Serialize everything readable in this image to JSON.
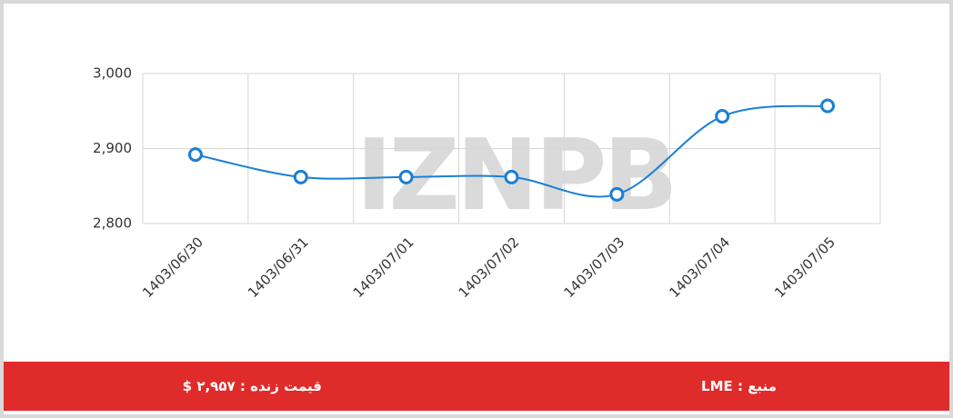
{
  "chart_data": {
    "type": "line",
    "watermark": "IZNPB",
    "categories": [
      "1403/06/30",
      "1403/06/31",
      "1403/07/01",
      "1403/07/02",
      "1403/07/03",
      "1403/07/04",
      "1403/07/05"
    ],
    "values": [
      2892,
      2862,
      2862,
      2862,
      2839,
      2943,
      2957
    ],
    "color": "#1a7fd4",
    "ylim": [
      2800,
      3000
    ],
    "yticks": [
      {
        "value": 2800,
        "label": "2,800"
      },
      {
        "value": 2900,
        "label": "2,900"
      },
      {
        "value": 3000,
        "label": "3,000"
      }
    ],
    "grid": true
  },
  "footer": {
    "source": "منبع : LME",
    "live_price": "قیمت زنده : ۲,۹۵۷ $"
  }
}
